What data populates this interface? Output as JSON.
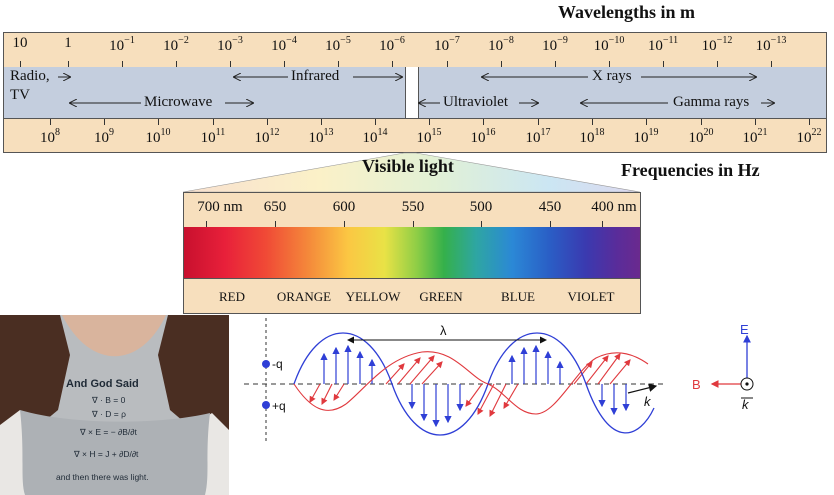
{
  "headers": {
    "wavelengths": "Wavelengths in m",
    "frequencies": "Frequencies in Hz",
    "visible": "Visible light"
  },
  "wavelength_ticks": [
    {
      "base": "10",
      "exp": ""
    },
    {
      "base": "1",
      "exp": ""
    },
    {
      "base": "10",
      "exp": "−1"
    },
    {
      "base": "10",
      "exp": "−2"
    },
    {
      "base": "10",
      "exp": "−3"
    },
    {
      "base": "10",
      "exp": "−4"
    },
    {
      "base": "10",
      "exp": "−5"
    },
    {
      "base": "10",
      "exp": "−6"
    },
    {
      "base": "10",
      "exp": "−7"
    },
    {
      "base": "10",
      "exp": "−8"
    },
    {
      "base": "10",
      "exp": "−9"
    },
    {
      "base": "10",
      "exp": "−10"
    },
    {
      "base": "10",
      "exp": "−11"
    },
    {
      "base": "10",
      "exp": "−12"
    },
    {
      "base": "10",
      "exp": "−13"
    }
  ],
  "frequency_ticks": [
    {
      "base": "10",
      "exp": "8"
    },
    {
      "base": "10",
      "exp": "9"
    },
    {
      "base": "10",
      "exp": "10"
    },
    {
      "base": "10",
      "exp": "11"
    },
    {
      "base": "10",
      "exp": "12"
    },
    {
      "base": "10",
      "exp": "13"
    },
    {
      "base": "10",
      "exp": "14"
    },
    {
      "base": "10",
      "exp": "15"
    },
    {
      "base": "10",
      "exp": "16"
    },
    {
      "base": "10",
      "exp": "17"
    },
    {
      "base": "10",
      "exp": "18"
    },
    {
      "base": "10",
      "exp": "19"
    },
    {
      "base": "10",
      "exp": "20"
    },
    {
      "base": "10",
      "exp": "21"
    },
    {
      "base": "10",
      "exp": "22"
    }
  ],
  "bands": {
    "radio": "Radio,",
    "tv": "TV",
    "infrared": "Infrared",
    "microwave": "Microwave",
    "xrays": "X rays",
    "ultraviolet": "Ultraviolet",
    "gamma": "Gamma rays"
  },
  "nm_ticks": [
    "700 nm",
    "650",
    "600",
    "550",
    "500",
    "450",
    "400 nm"
  ],
  "color_names": [
    "RED",
    "ORANGE",
    "YELLOW",
    "GREEN",
    "BLUE",
    "VIOLET"
  ],
  "shirt": {
    "title": "And God Said",
    "eq1": "∇ · B = 0",
    "eq2": "∇ · D = ρ",
    "eq3": "∇ × E = − ∂B/∂t",
    "eq4": "∇ × H = J + ∂D/∂t",
    "footer": "and then there was light."
  },
  "wave": {
    "lambda": "λ",
    "minus_q": "-q",
    "plus_q": "+q",
    "k": "k",
    "B": "B",
    "E": "E"
  },
  "colors": {
    "tan": "#f7dfbd",
    "band": "#c4cede",
    "e_field": "#2f3fd6",
    "b_field": "#e0393e"
  }
}
